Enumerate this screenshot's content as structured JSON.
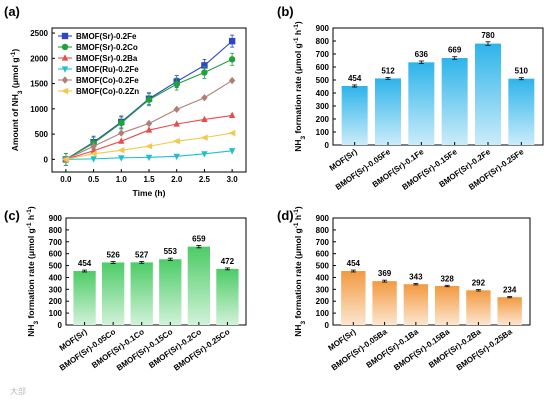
{
  "chart_data": [
    {
      "panel_label": "(a)",
      "type": "line",
      "xlabel": "Time (h)",
      "ylabel_parts": [
        "Amount of NH",
        "3",
        " (μmol g",
        "-1",
        ")"
      ],
      "xlim": [
        -0.25,
        3.25
      ],
      "ylim": [
        -250,
        2600
      ],
      "xticks": [
        "0.0",
        "0.5",
        "1.0",
        "1.5",
        "2.0",
        "2.5",
        "3.0"
      ],
      "yticks": [
        "0",
        "500",
        "1000",
        "1500",
        "2000",
        "2500"
      ],
      "legend_position": "top-left",
      "x": [
        0,
        0.5,
        1.0,
        1.5,
        2.0,
        2.5,
        3.0
      ],
      "series": [
        {
          "name": "BMOF(Sr)-0.2Fe",
          "color": "#2b46c7",
          "marker": "square",
          "values": [
            0,
            340,
            740,
            1200,
            1540,
            1860,
            2340
          ]
        },
        {
          "name": "BMOF(Sr)-0.2Co",
          "color": "#1fa23a",
          "marker": "circle",
          "values": [
            0,
            320,
            720,
            1180,
            1490,
            1720,
            1980
          ]
        },
        {
          "name": "BMOF(Sr)-0.2Ba",
          "color": "#ea4b4b",
          "marker": "triangle-up",
          "values": [
            0,
            170,
            360,
            580,
            700,
            790,
            870
          ]
        },
        {
          "name": "BMOF(Ru)-0.2Fe",
          "color": "#1ec0d0",
          "marker": "triangle-down",
          "values": [
            0,
            10,
            30,
            40,
            60,
            110,
            170
          ]
        },
        {
          "name": "BMOF(Co)-0.2Fe",
          "color": "#b08078",
          "marker": "diamond",
          "values": [
            0,
            260,
            520,
            710,
            990,
            1220,
            1560
          ]
        },
        {
          "name": "BMOF(Co)-0.2Zn",
          "color": "#f2c94c",
          "marker": "triangle-left",
          "values": [
            0,
            110,
            180,
            260,
            360,
            430,
            520
          ]
        }
      ]
    },
    {
      "panel_label": "(b)",
      "type": "bar",
      "ylabel_parts": [
        "NH",
        "3",
        " formation rate (μmol g",
        "-1",
        " h",
        "-1",
        ")"
      ],
      "ylim": [
        0,
        900
      ],
      "yticks": [
        "0",
        "100",
        "200",
        "300",
        "400",
        "500",
        "600",
        "700",
        "800",
        "900"
      ],
      "color": "#2db4ea",
      "categories": [
        "MOF(Sr)",
        "BMOF(Sr)-0.05Fe",
        "BMOF(Sr)-0.1Fe",
        "BMOF(Sr)-0.15Fe",
        "BMOF(Sr)-0.2Fe",
        "BMOF(Sr)-0.25Fe"
      ],
      "values": [
        454,
        512,
        636,
        669,
        780,
        510
      ],
      "value_labels": [
        "454",
        "512",
        "636",
        "669",
        "780",
        "510"
      ],
      "errors": [
        8,
        8,
        10,
        10,
        14,
        8
      ]
    },
    {
      "panel_label": "(c)",
      "type": "bar",
      "ylabel_parts": [
        "NH",
        "3",
        " formation rate (μmol g",
        "-1",
        " h",
        "-1",
        ")"
      ],
      "ylim": [
        0,
        900
      ],
      "yticks": [
        "0",
        "100",
        "200",
        "300",
        "400",
        "500",
        "600",
        "700",
        "800",
        "900"
      ],
      "color": "#4ccc66",
      "categories": [
        "MOF(Sr)",
        "BMOF(Sr)-0.05Co",
        "BMOF(Sr)-0.1Co",
        "BMOF(Sr)-0.15Co",
        "BMOF(Sr)-0.2Co",
        "BMOF(Sr)-0.25Co"
      ],
      "values": [
        454,
        526,
        527,
        553,
        659,
        472
      ],
      "value_labels": [
        "454",
        "526",
        "527",
        "553",
        "659",
        "472"
      ],
      "errors": [
        8,
        8,
        8,
        9,
        10,
        8
      ]
    },
    {
      "panel_label": "(d)",
      "type": "bar",
      "ylabel_parts": [
        "NH",
        "3",
        " formation rate (μmol g",
        "-1",
        " h",
        "-1",
        ")"
      ],
      "ylim": [
        0,
        900
      ],
      "yticks": [
        "0",
        "100",
        "200",
        "300",
        "400",
        "500",
        "600",
        "700",
        "800",
        "900"
      ],
      "color": "#f29a40",
      "categories": [
        "MOF(Sr)",
        "BMOF(Sr)-0.05Ba",
        "BMOF(Sr)-0.1Ba",
        "BMOF(Sr)-0.15Ba",
        "BMOF(Sr)-0.2Ba",
        "BMOF(Sr)-0.25Ba"
      ],
      "values": [
        454,
        369,
        343,
        328,
        292,
        234
      ],
      "value_labels": [
        "454",
        "369",
        "343",
        "328",
        "292",
        "234"
      ],
      "errors": [
        8,
        8,
        6,
        6,
        6,
        5
      ]
    }
  ],
  "watermark": "大部"
}
